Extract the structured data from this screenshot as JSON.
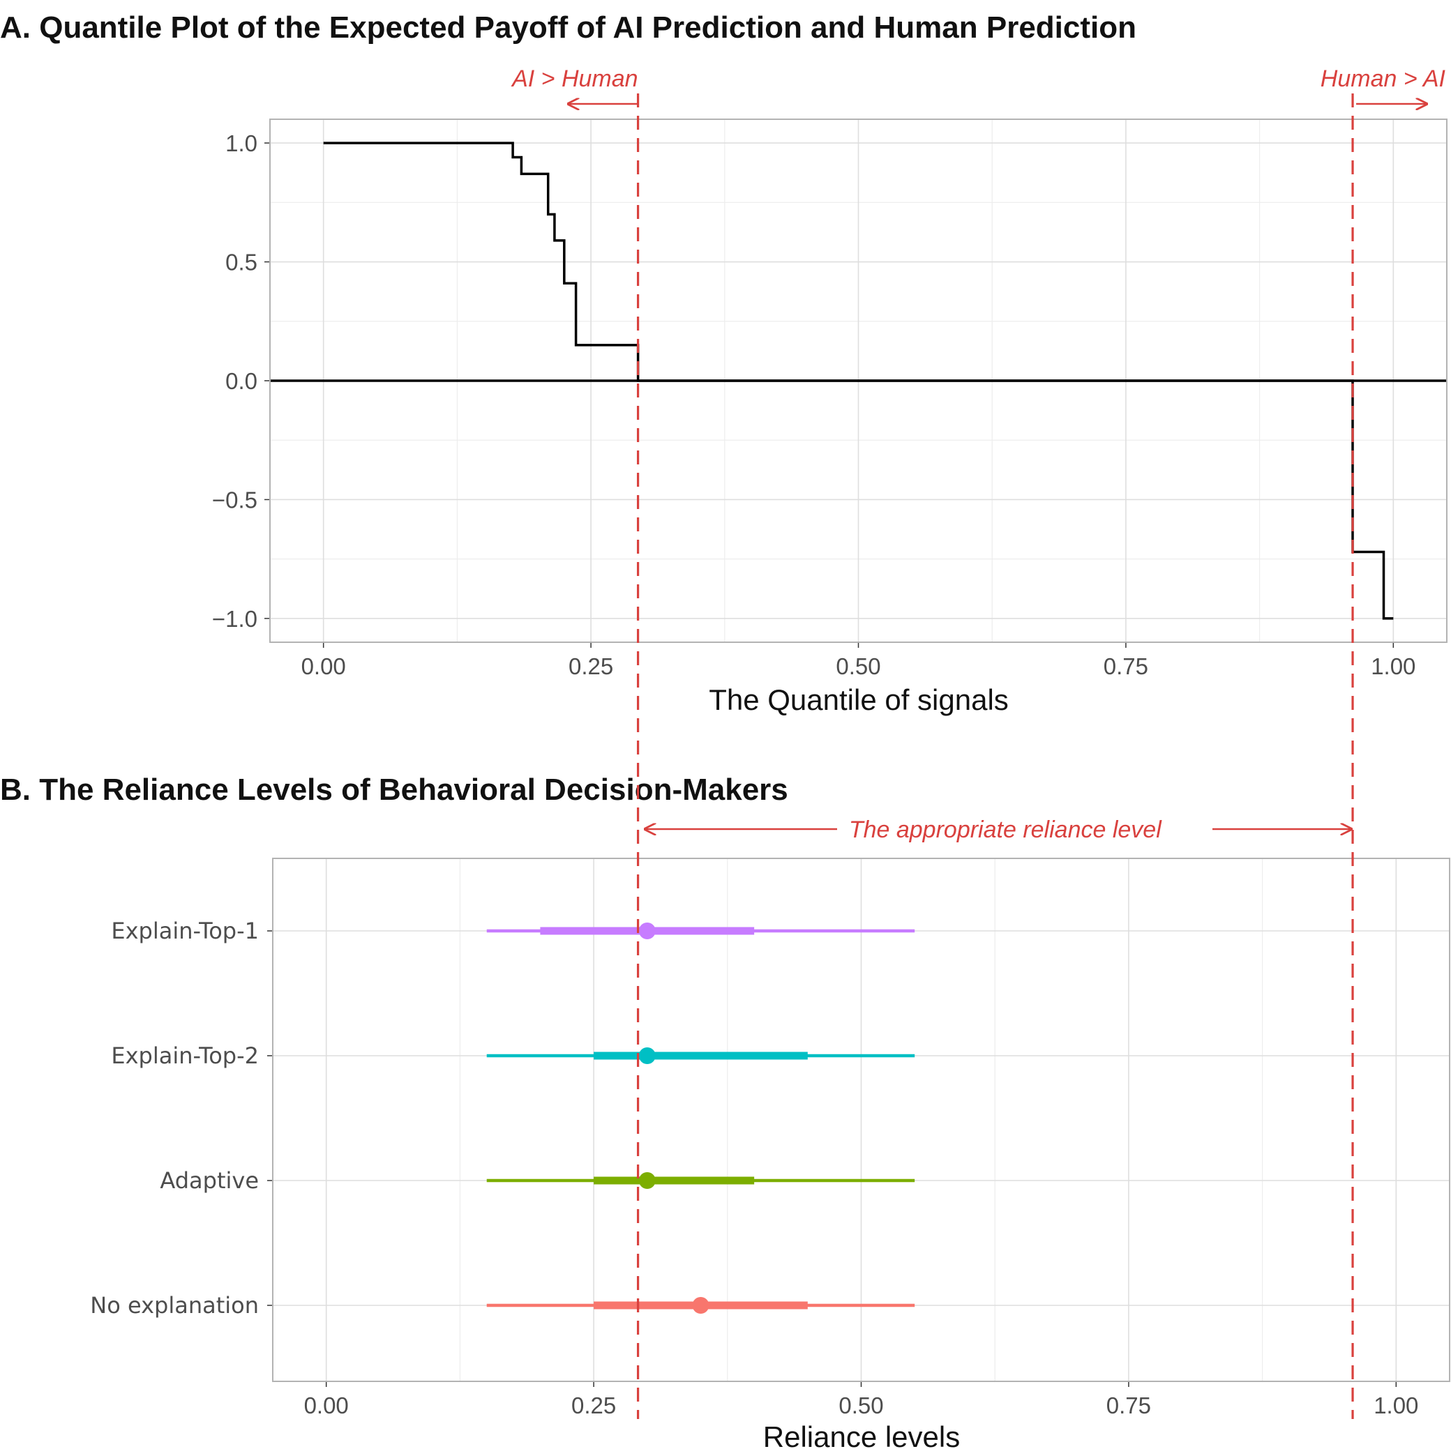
{
  "colors": {
    "reference": "#d9413e",
    "step_line": "#000000",
    "grid": "#dedede"
  },
  "chart_data": [
    {
      "type": "line",
      "title": "A. Quantile Plot of the Expected Payoff of AI Prediction and Human Prediction",
      "xlabel": "The Quantile of signals",
      "ylabel": "",
      "xlim": [
        -0.05,
        1.05
      ],
      "ylim": [
        -1.1,
        1.1
      ],
      "x_ticks": [
        0.0,
        0.25,
        0.5,
        0.75,
        1.0
      ],
      "x_tick_labels": [
        "0.00",
        "0.25",
        "0.50",
        "0.75",
        "1.00"
      ],
      "y_ticks": [
        1.0,
        0.5,
        0.0,
        -0.5,
        -1.0
      ],
      "y_tick_labels": [
        "1.0",
        "0.5",
        "0.0",
        "−0.5",
        "−1.0"
      ],
      "grid": true,
      "series": [
        {
          "style": "step",
          "points": [
            [
              0.0,
              1.0
            ],
            [
              0.177,
              1.0
            ],
            [
              0.177,
              0.94
            ],
            [
              0.185,
              0.94
            ],
            [
              0.185,
              0.87
            ],
            [
              0.21,
              0.87
            ],
            [
              0.21,
              0.7
            ],
            [
              0.216,
              0.7
            ],
            [
              0.216,
              0.59
            ],
            [
              0.225,
              0.59
            ],
            [
              0.225,
              0.41
            ],
            [
              0.236,
              0.41
            ],
            [
              0.236,
              0.15
            ],
            [
              0.294,
              0.15
            ],
            [
              0.294,
              0.0
            ],
            [
              0.962,
              0.0
            ],
            [
              0.962,
              -0.72
            ],
            [
              0.991,
              -0.72
            ],
            [
              0.991,
              -1.0
            ],
            [
              1.0,
              -1.0
            ]
          ]
        }
      ],
      "hline": 0.0,
      "reference_lines": [
        0.294,
        0.962
      ],
      "annotations": {
        "left": "AI > Human",
        "right": "Human > AI"
      }
    },
    {
      "type": "scatter",
      "title": "B. The Reliance Levels of Behavioral Decision-Makers",
      "xlabel": "Reliance levels",
      "ylabel": "",
      "xlim": [
        -0.05,
        1.05
      ],
      "x_ticks": [
        0.0,
        0.25,
        0.5,
        0.75,
        1.0
      ],
      "x_tick_labels": [
        "0.00",
        "0.25",
        "0.50",
        "0.75",
        "1.00"
      ],
      "grid": true,
      "categories": [
        "Explain-Top-1",
        "Explain-Top-2",
        "Adaptive",
        "No explanation"
      ],
      "series": [
        {
          "category": "Explain-Top-1",
          "color": "#c77cff",
          "point": 0.3,
          "inner": [
            0.2,
            0.4
          ],
          "outer": [
            0.15,
            0.55
          ]
        },
        {
          "category": "Explain-Top-2",
          "color": "#00bfc4",
          "point": 0.3,
          "inner": [
            0.25,
            0.45
          ],
          "outer": [
            0.15,
            0.55
          ]
        },
        {
          "category": "Adaptive",
          "color": "#7cae00",
          "point": 0.3,
          "inner": [
            0.25,
            0.4
          ],
          "outer": [
            0.15,
            0.55
          ]
        },
        {
          "category": "No explanation",
          "color": "#f8766d",
          "point": 0.35,
          "inner": [
            0.25,
            0.45
          ],
          "outer": [
            0.15,
            0.55
          ]
        }
      ],
      "reference_range": [
        0.294,
        0.962
      ],
      "annotation": "The appropriate reliance level"
    }
  ]
}
